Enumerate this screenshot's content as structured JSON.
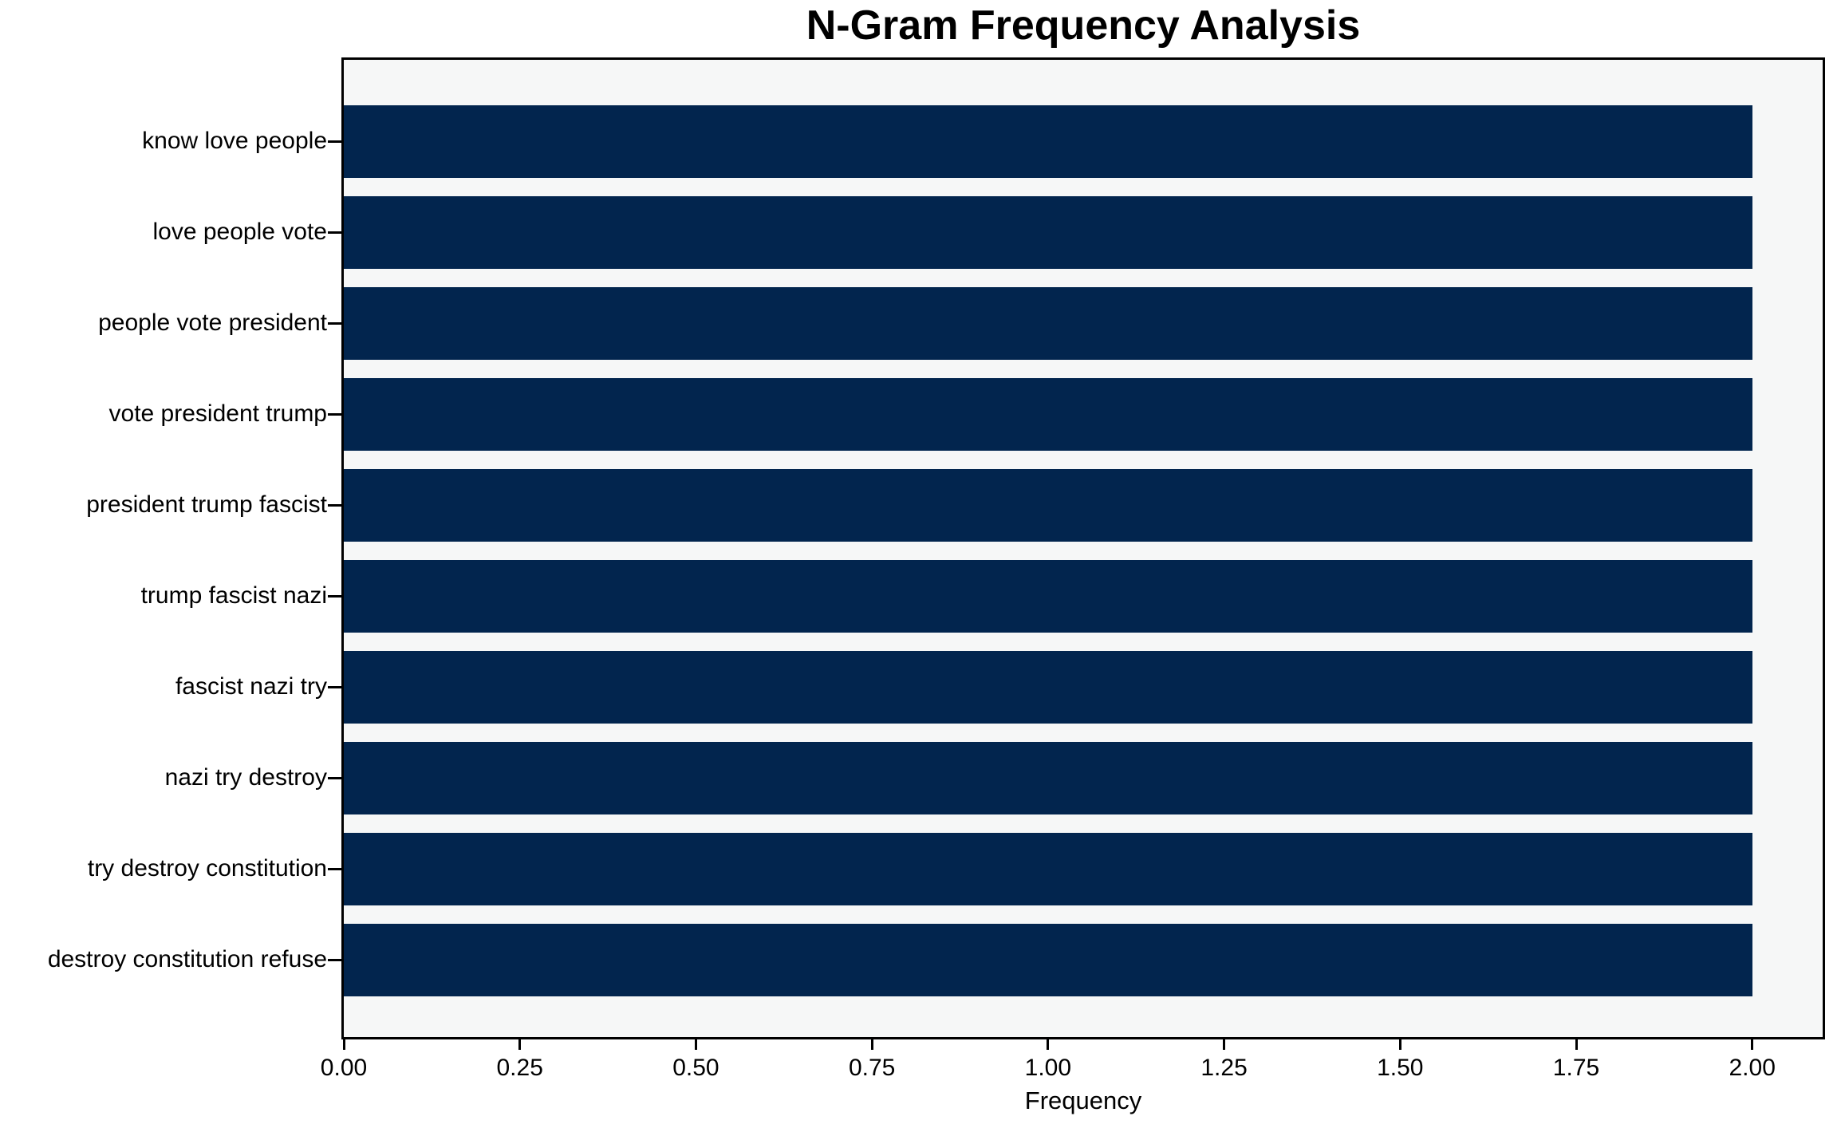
{
  "chart_data": {
    "type": "bar",
    "orientation": "horizontal",
    "title": "N-Gram Frequency Analysis",
    "xlabel": "Frequency",
    "ylabel": "",
    "categories": [
      "know love people",
      "love people vote",
      "people vote president",
      "vote president trump",
      "president trump fascist",
      "trump fascist nazi",
      "fascist nazi try",
      "nazi try destroy",
      "try destroy constitution",
      "destroy constitution refuse"
    ],
    "values": [
      2,
      2,
      2,
      2,
      2,
      2,
      2,
      2,
      2,
      2
    ],
    "xlim": [
      0,
      2.1
    ],
    "xticks": [
      0,
      0.25,
      0.5,
      0.75,
      1.0,
      1.25,
      1.5,
      1.75,
      2.0
    ],
    "xtick_labels": [
      "0.00",
      "0.25",
      "0.50",
      "0.75",
      "1.00",
      "1.25",
      "1.50",
      "1.75",
      "2.00"
    ],
    "grid": false,
    "legend": false,
    "colors": {
      "bar": "#02254e",
      "plot_background": "#f6f7f7",
      "figure_background": "#ffffff",
      "spine": "#000000",
      "text": "#000000"
    }
  }
}
